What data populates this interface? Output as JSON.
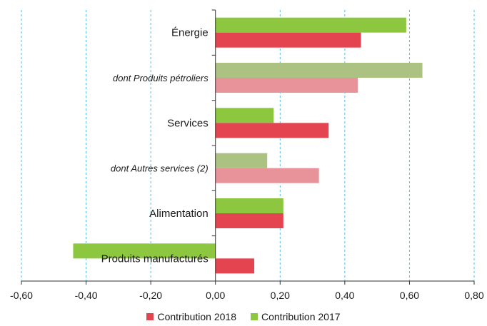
{
  "chart_data": {
    "type": "bar",
    "orientation": "horizontal",
    "categories": [
      "Énergie",
      "dont Produits pétroliers",
      "Services",
      "dont Autres services (2)",
      "Alimentation",
      "Produits manufacturés"
    ],
    "subcategory_flags": [
      false,
      true,
      false,
      true,
      false,
      false
    ],
    "series": [
      {
        "name": "Contribution 2017",
        "color": "#8dc63f",
        "light_color": "#abc282",
        "values": [
          0.59,
          0.64,
          0.18,
          0.16,
          0.21,
          -0.44
        ]
      },
      {
        "name": "Contribution 2018",
        "color": "#e3444f",
        "light_color": "#e8939a",
        "values": [
          0.45,
          0.44,
          0.35,
          0.32,
          0.21,
          0.12
        ]
      }
    ],
    "xlim": [
      -0.6,
      0.8
    ],
    "xticks": [
      "-0,60",
      "-0,40",
      "-0,20",
      "0,00",
      "0,20",
      "0,40",
      "0,60",
      "0,80"
    ],
    "grid": true,
    "legend": {
      "position": "bottom",
      "entries": [
        "Contribution 2018",
        "Contribution 2017"
      ]
    }
  }
}
